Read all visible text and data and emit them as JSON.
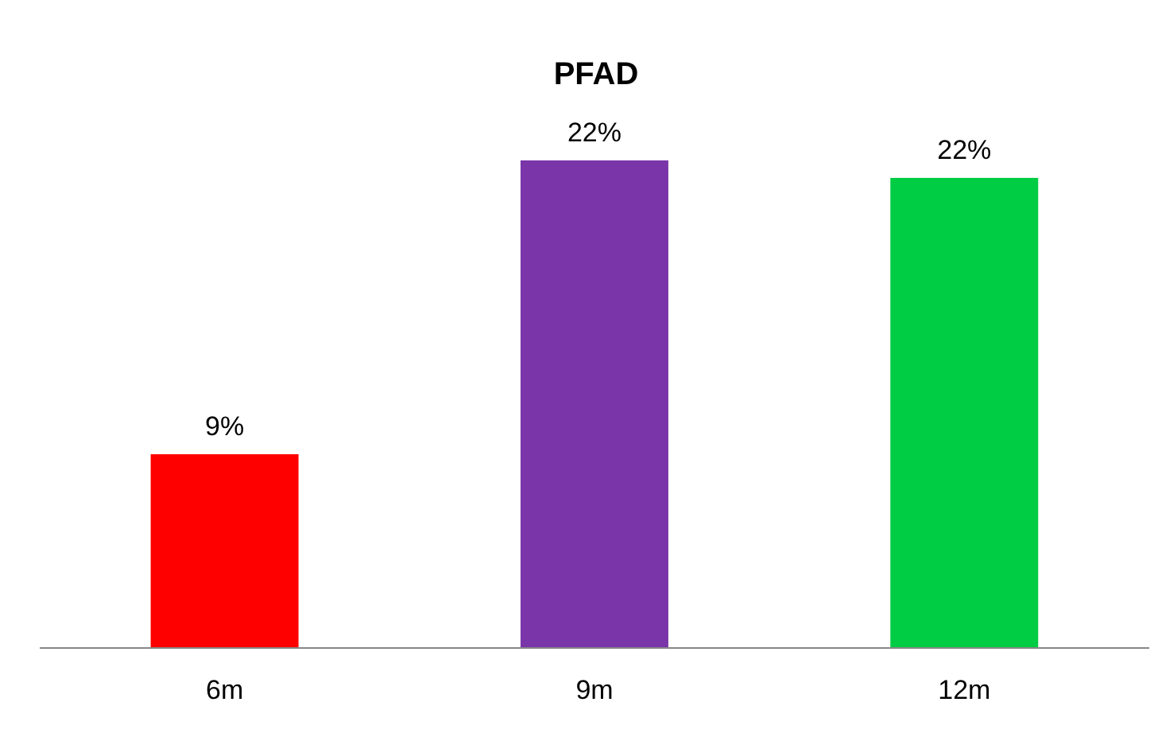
{
  "chart_data": {
    "type": "bar",
    "title": "PFAD",
    "categories": [
      "6m",
      "9m",
      "12m"
    ],
    "values": [
      8.9,
      22.4,
      21.6
    ],
    "colors": [
      "#ff0000",
      "#7a35a8",
      "#00cc44"
    ],
    "value_labels": [
      "9%",
      "22%",
      "22%"
    ]
  }
}
